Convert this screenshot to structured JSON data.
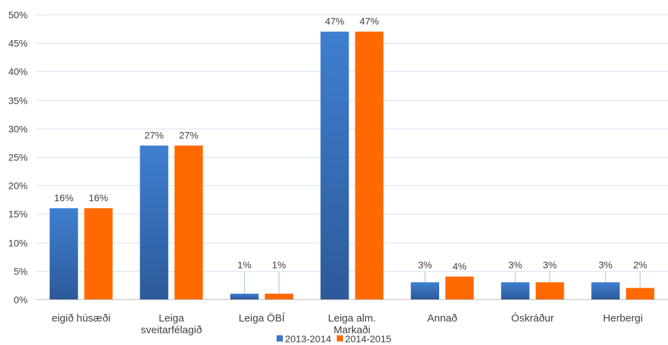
{
  "chart_data": {
    "type": "bar",
    "title": "",
    "xlabel": "",
    "ylabel": "",
    "ylim": [
      0,
      50
    ],
    "yticks": [
      "0%",
      "5%",
      "10%",
      "15%",
      "20%",
      "25%",
      "30%",
      "35%",
      "40%",
      "45%",
      "50%"
    ],
    "grid": true,
    "legend_position": "bottom",
    "categories": [
      [
        "eigið húsæði"
      ],
      [
        "Leiga",
        "sveitarfélagið"
      ],
      [
        "Leiga ÖBÍ"
      ],
      [
        "Leiga alm.",
        "Markaði"
      ],
      [
        "Annað"
      ],
      [
        "Óskráður"
      ],
      [
        "Herbergi"
      ]
    ],
    "series": [
      {
        "name": "2013-2014",
        "color": "#3c78c8",
        "values": [
          16,
          27,
          1,
          47,
          3,
          3,
          3
        ],
        "labels": [
          "16%",
          "27%",
          "1%",
          "47%",
          "3%",
          "3%",
          "3%"
        ]
      },
      {
        "name": "2014-2015",
        "color": "#ff6a00",
        "values": [
          16,
          27,
          1,
          47,
          4,
          3,
          2
        ],
        "labels": [
          "16%",
          "27%",
          "1%",
          "47%",
          "4%",
          "3%",
          "2%"
        ]
      }
    ]
  }
}
